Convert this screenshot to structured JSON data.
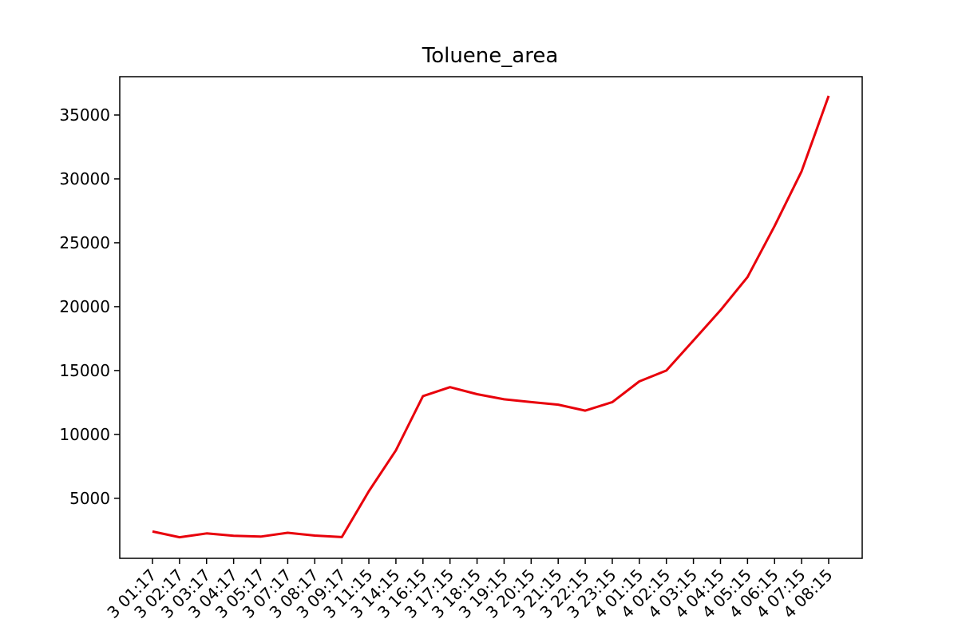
{
  "chart_data": {
    "type": "line",
    "title": "Toluene_area",
    "xlabel": "",
    "ylabel": "",
    "ylim": [
      300,
      38000
    ],
    "yticks": [
      5000,
      10000,
      15000,
      20000,
      25000,
      30000,
      35000
    ],
    "grid": false,
    "legend": null,
    "color": "#e8000b",
    "x": [
      "3 01:17",
      "3 02:17",
      "3 03:17",
      "3 04:17",
      "3 05:17",
      "3 07:17",
      "3 08:17",
      "3 09:17",
      "3 11:15",
      "3 14:15",
      "3 16:15",
      "3 17:15",
      "3 18:15",
      "3 19:15",
      "3 20:15",
      "3 21:15",
      "3 22:15",
      "3 23:15",
      "4 01:15",
      "4 02:15",
      "4 03:15",
      "4 04:15",
      "4 05:15",
      "4 06:15",
      "4 07:15",
      "4 08:15"
    ],
    "series": [
      {
        "values": [
          2400,
          1950,
          2250,
          2060,
          2000,
          2300,
          2080,
          1960,
          5550,
          8750,
          13000,
          13700,
          13150,
          12750,
          12530,
          12330,
          11860,
          12530,
          14150,
          15000,
          17350,
          19720,
          22320,
          26300,
          30600,
          36500
        ]
      }
    ]
  }
}
